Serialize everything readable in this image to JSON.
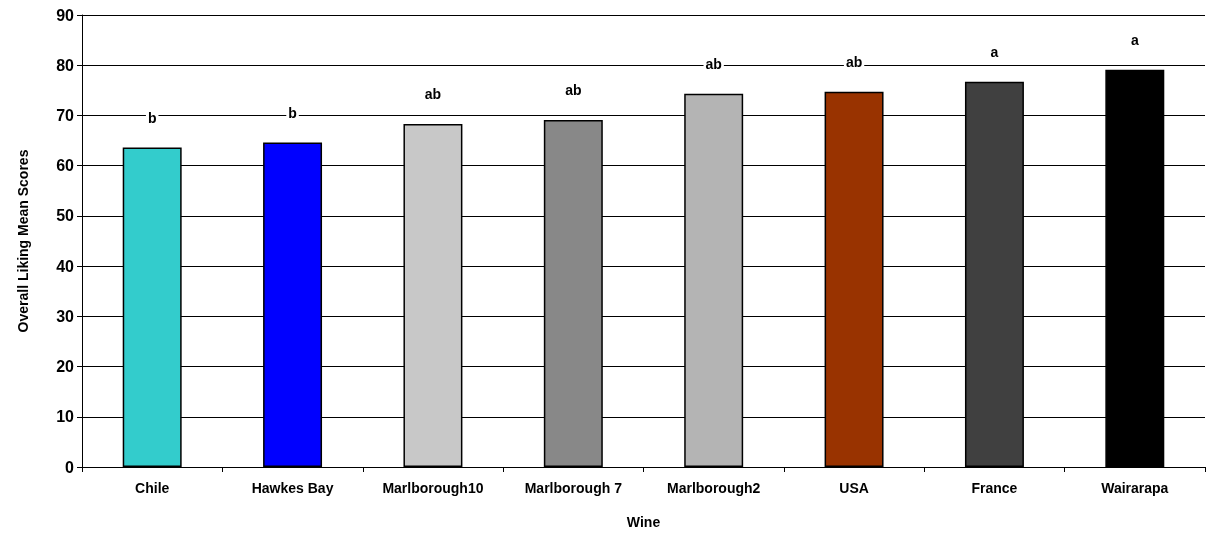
{
  "chart_data": {
    "type": "bar",
    "xlabel": "Wine",
    "ylabel": "Overall Liking Mean Scores",
    "categories": [
      "Chile",
      "Hawkes Bay",
      "Marlborough10",
      "Marlborough 7",
      "Marlborough2",
      "USA",
      "France",
      "Wairarapa"
    ],
    "values": [
      63.6,
      64.6,
      68.3,
      69.1,
      74.3,
      74.7,
      76.7,
      79.1
    ],
    "colors": [
      "#33cccc",
      "#0000ff",
      "#c8c8c8",
      "#888888",
      "#b4b4b4",
      "#993300",
      "#404040",
      "#000000"
    ],
    "ylim": [
      0,
      90
    ],
    "yticks": [
      0,
      10,
      20,
      30,
      40,
      50,
      60,
      70,
      80,
      90
    ],
    "grid": "y",
    "annotations": [
      "b",
      "b",
      "ab",
      "ab",
      "ab",
      "ab",
      "a",
      "a"
    ]
  }
}
